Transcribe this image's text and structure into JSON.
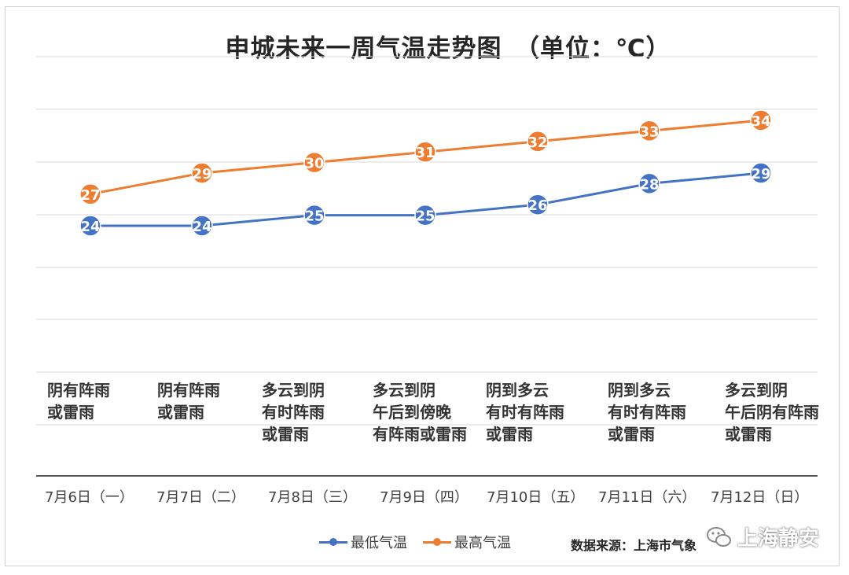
{
  "title": "申城未来一周气温走势图　（单位：℃）",
  "weather": [
    "阴有阵雨\n或雷雨",
    "阴有阵雨\n或雷雨",
    "多云到阴\n有时阵雨\n或雷雨",
    "多云到阴\n午后到傍晚\n有阵雨或雷雨",
    "阴到多云\n有时有阵雨\n或雷雨",
    "阴到多云\n有时有阵雨\n或雷雨",
    "多云到阴\n午后阴有阵雨\n或雷雨"
  ],
  "chart_data": {
    "type": "line",
    "title": "申城未来一周气温走势图　（单位：℃）",
    "categories": [
      "7月6日（一）",
      "7月7日（二）",
      "7月8日（三）",
      "7月9日（四）",
      "7月10日（五）",
      "7月11日（六）",
      "7月12日（日）"
    ],
    "series": [
      {
        "name": "最低气温",
        "values": [
          24,
          24,
          25,
          25,
          26,
          28,
          29
        ],
        "color": "#4472C4"
      },
      {
        "name": "最高气温",
        "values": [
          27,
          29,
          30,
          31,
          32,
          33,
          34
        ],
        "color": "#ED7D31"
      }
    ],
    "grid": true,
    "legend": "bottom"
  },
  "source": "数据来源：上海市气象",
  "watermark": "上海静安"
}
